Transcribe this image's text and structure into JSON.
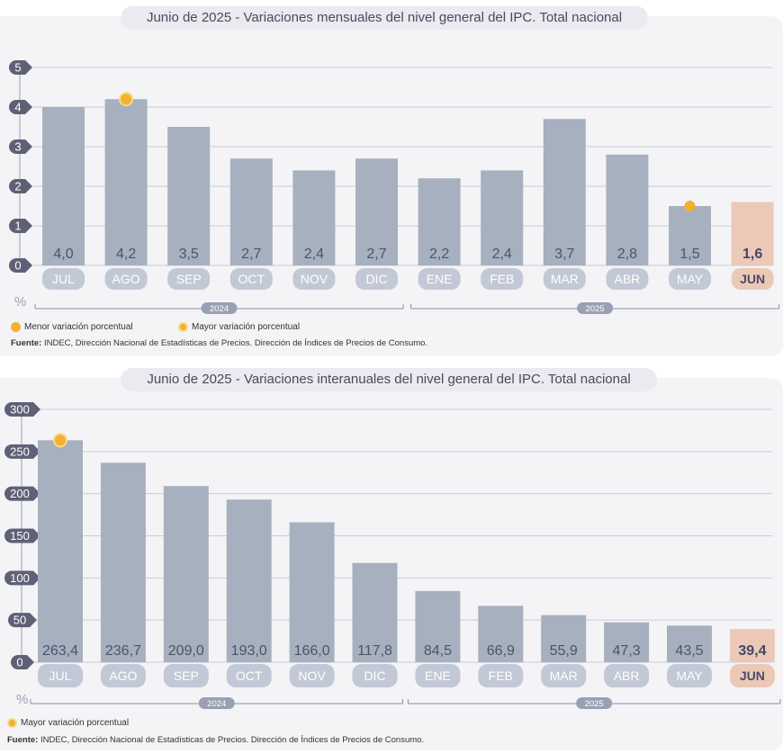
{
  "colors": {
    "bar": "#a7b0bf",
    "highlight_bar": "#ecc9b6",
    "axis_pill": "#5e6176",
    "label_pill": "#c3c8d6",
    "highlight_label_pill": "#ecc9b6",
    "marker": "#f2b12e",
    "value_text": "#4a5568"
  },
  "chart_data": [
    {
      "type": "bar",
      "title_date": "Junio de 2025",
      "title_sep": " - ",
      "title": "Variaciones mensuales del nivel general del IPC. Total nacional",
      "categories": [
        "JUL",
        "AGO",
        "SEP",
        "OCT",
        "NOV",
        "DIC",
        "ENE",
        "FEB",
        "MAR",
        "ABR",
        "MAY",
        "JUN"
      ],
      "values": [
        4.0,
        4.2,
        3.5,
        2.7,
        2.4,
        2.7,
        2.2,
        2.4,
        3.7,
        2.8,
        1.5,
        1.6
      ],
      "value_labels": [
        "4,0",
        "4,2",
        "3,5",
        "2,7",
        "2,4",
        "2,7",
        "2,2",
        "2,4",
        "3,7",
        "2,8",
        "1,5",
        "1,6"
      ],
      "highlight_index": 11,
      "ylim": [
        0,
        5
      ],
      "yticks": [
        "0",
        "1",
        "2",
        "3",
        "4",
        "5"
      ],
      "ylabel": "%",
      "grid": true,
      "years": [
        {
          "label": "2024",
          "from": 0,
          "to": 5
        },
        {
          "label": "2025",
          "from": 6,
          "to": 11
        }
      ],
      "markers": [
        {
          "index": 10,
          "kind": "min"
        },
        {
          "index": 1,
          "kind": "max"
        }
      ],
      "legend": [
        {
          "kind": "min",
          "label": "Menor variación porcentual"
        },
        {
          "kind": "max",
          "label": "Mayor variación porcentual"
        }
      ],
      "source_bold": "Fuente:",
      "source": " INDEC, Dirección Nacional de Estadísticas de Precios. Dirección de Índices de Precios de Consumo."
    },
    {
      "type": "bar",
      "title_date": "Junio de 2025",
      "title_sep": " - ",
      "title": "Variaciones interanuales del nivel general del IPC. Total nacional",
      "categories": [
        "JUL",
        "AGO",
        "SEP",
        "OCT",
        "NOV",
        "DIC",
        "ENE",
        "FEB",
        "MAR",
        "ABR",
        "MAY",
        "JUN"
      ],
      "values": [
        263.4,
        236.7,
        209.0,
        193.0,
        166.0,
        117.8,
        84.5,
        66.9,
        55.9,
        47.3,
        43.5,
        39.4
      ],
      "value_labels": [
        "263,4",
        "236,7",
        "209,0",
        "193,0",
        "166,0",
        "117,8",
        "84,5",
        "66,9",
        "55,9",
        "47,3",
        "43,5",
        "39,4"
      ],
      "highlight_index": 11,
      "ylim": [
        0,
        300
      ],
      "yticks": [
        "0",
        "50",
        "100",
        "150",
        "200",
        "250",
        "300"
      ],
      "ylabel": "%",
      "grid": true,
      "years": [
        {
          "label": "2024",
          "from": 0,
          "to": 5
        },
        {
          "label": "2025",
          "from": 6,
          "to": 11
        }
      ],
      "markers": [
        {
          "index": 0,
          "kind": "max"
        }
      ],
      "legend": [
        {
          "kind": "max",
          "label": "Mayor variación porcentual"
        }
      ],
      "source_bold": "Fuente:",
      "source": " INDEC, Dirección Nacional de Estadísticas de Precios. Dirección de Índices de Precios de Consumo."
    }
  ]
}
